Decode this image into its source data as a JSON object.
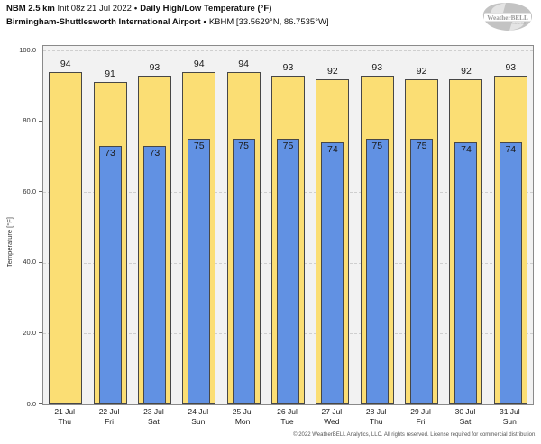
{
  "header": {
    "model": "NBM 2.5 km",
    "init": "Init 08z 21 Jul 2022",
    "separator": "•",
    "product": "Daily High/Low Temperature (°F)",
    "station_name": "Birmingham-Shuttlesworth International Airport",
    "station_meta": "KBHM [33.5629°N, 86.7535°W]"
  },
  "logo": {
    "name": "weatherbell-swirl-logo",
    "text": "WeatherBELL"
  },
  "chart_data": {
    "type": "bar",
    "title": "Daily High/Low Temperature (°F)",
    "subtitle": "Birmingham-Shuttlesworth International Airport • KBHM [33.5629°N, 86.7535°W]",
    "xlabel": "",
    "ylabel": "Temperature [°F]",
    "ylim": [
      0,
      101.3
    ],
    "yticks": [
      0,
      20,
      40,
      60,
      80,
      100
    ],
    "ytick_labels": [
      "0.0",
      "20.0",
      "40.0",
      "60.0",
      "80.0",
      "100.0"
    ],
    "grid": "horizontal-dashed",
    "legend": "none",
    "categories": [
      {
        "date": "21 Jul",
        "day": "Thu"
      },
      {
        "date": "22 Jul",
        "day": "Fri"
      },
      {
        "date": "23 Jul",
        "day": "Sat"
      },
      {
        "date": "24 Jul",
        "day": "Sun"
      },
      {
        "date": "25 Jul",
        "day": "Mon"
      },
      {
        "date": "26 Jul",
        "day": "Tue"
      },
      {
        "date": "27 Jul",
        "day": "Wed"
      },
      {
        "date": "28 Jul",
        "day": "Thu"
      },
      {
        "date": "29 Jul",
        "day": "Fri"
      },
      {
        "date": "30 Jul",
        "day": "Sat"
      },
      {
        "date": "31 Jul",
        "day": "Sun"
      }
    ],
    "series": [
      {
        "name": "Daily High",
        "color": "#fbde74",
        "values": [
          94,
          91,
          93,
          94,
          94,
          93,
          92,
          93,
          92,
          92,
          93
        ]
      },
      {
        "name": "Daily Low",
        "color": "#6191e3",
        "values": [
          null,
          73,
          73,
          75,
          75,
          75,
          74,
          75,
          75,
          74,
          74
        ]
      }
    ]
  },
  "colors": {
    "high_bar": "#fbde74",
    "low_bar": "#6191e3",
    "bar_border": "#474747",
    "plot_background": "#f2f2f2",
    "gridline": "#cfcfcf",
    "axis_border": "#8a8a8a"
  },
  "footer": {
    "copyright": "© 2022 WeatherBELL Analytics, LLC. All rights reserved. License required for commercial distribution."
  }
}
